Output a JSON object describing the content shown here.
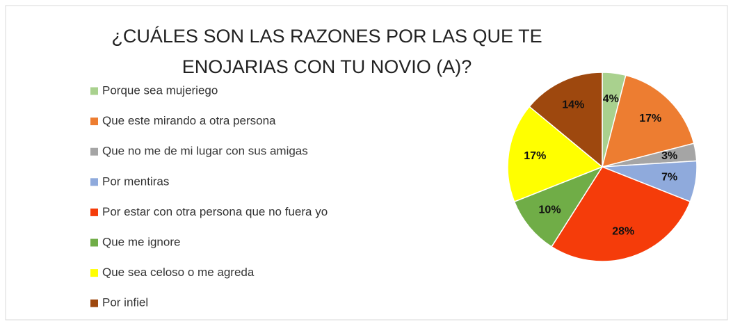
{
  "chart_data": {
    "type": "pie",
    "title": "¿CUÁLES SON LAS RAZONES POR LAS QUE TE ENOJARIAS CON TU NOVIO (A)?",
    "categories": [
      "Porque sea mujeriego",
      "Que  este mirando a otra persona",
      "Que no me de mi lugar con sus amigas",
      "Por mentiras",
      "Por estar con otra persona que no fuera yo",
      "Que me ignore",
      "Que sea celoso o me agreda",
      "Por infiel"
    ],
    "values": [
      4,
      17,
      3,
      7,
      28,
      10,
      17,
      14
    ],
    "value_labels": [
      "4%",
      "17%",
      "3%",
      "7%",
      "28%",
      "10%",
      "17%",
      "14%"
    ],
    "colors": [
      "#a9d18e",
      "#ed7d31",
      "#a5a5a5",
      "#8faadc",
      "#f53c0a",
      "#70ad47",
      "#ffff00",
      "#9e480e"
    ],
    "legend": "left"
  }
}
